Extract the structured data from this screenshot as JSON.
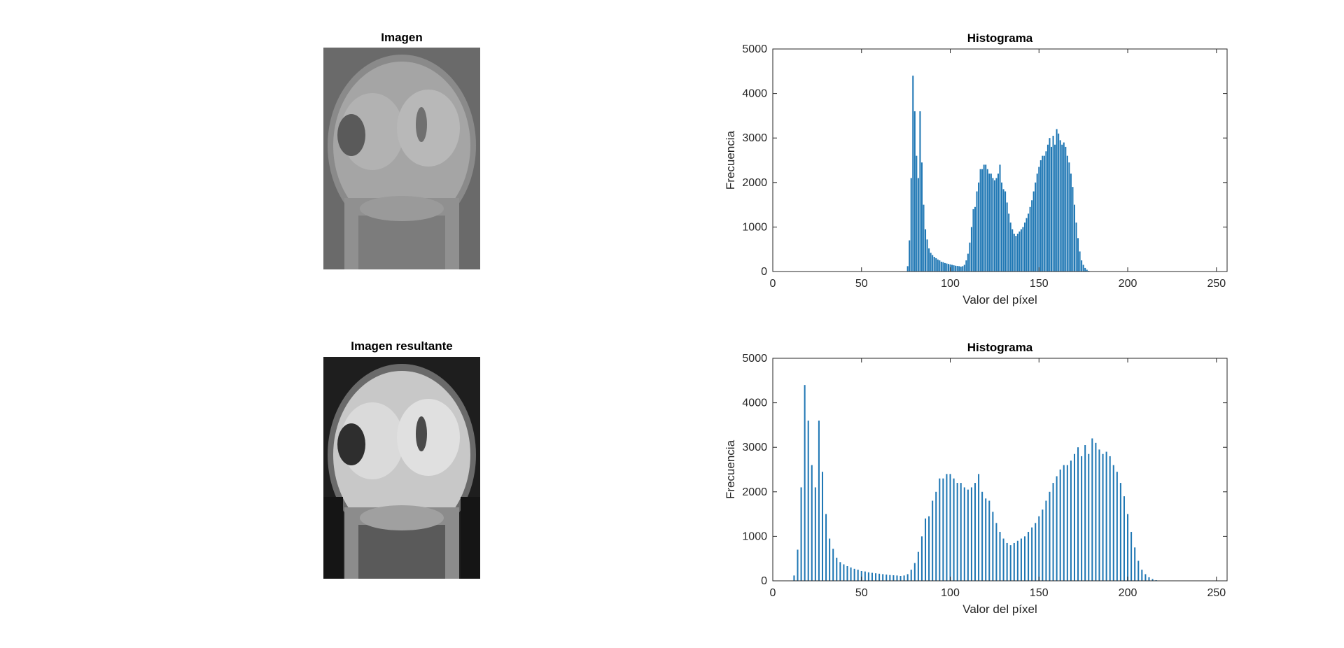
{
  "figure": {
    "panels": [
      {
        "title": "Imagen",
        "type": "image",
        "tone": "original-grayscale"
      },
      {
        "title": "Imagen resultante",
        "type": "image",
        "tone": "contrast-stretched"
      }
    ]
  },
  "chart_data": [
    {
      "type": "bar",
      "title": "Histograma",
      "xlabel": "Valor del píxel",
      "ylabel": "Frecuencia",
      "xlim": [
        0,
        256
      ],
      "ylim": [
        0,
        5000
      ],
      "xticks": [
        "0",
        "50",
        "100",
        "150",
        "200",
        "250"
      ],
      "yticks": [
        "0",
        "1000",
        "2000",
        "3000",
        "4000",
        "5000"
      ],
      "bar_color": "#1f77b4",
      "x": [
        76,
        77,
        78,
        79,
        80,
        81,
        82,
        83,
        84,
        85,
        86,
        87,
        88,
        89,
        90,
        91,
        92,
        93,
        94,
        95,
        96,
        97,
        98,
        99,
        100,
        101,
        102,
        103,
        104,
        105,
        106,
        107,
        108,
        109,
        110,
        111,
        112,
        113,
        114,
        115,
        116,
        117,
        118,
        119,
        120,
        121,
        122,
        123,
        124,
        125,
        126,
        127,
        128,
        129,
        130,
        131,
        132,
        133,
        134,
        135,
        136,
        137,
        138,
        139,
        140,
        141,
        142,
        143,
        144,
        145,
        146,
        147,
        148,
        149,
        150,
        151,
        152,
        153,
        154,
        155,
        156,
        157,
        158,
        159,
        160,
        161,
        162,
        163,
        164,
        165,
        166,
        167,
        168,
        169,
        170,
        171,
        172,
        173,
        174,
        175,
        176,
        177,
        178,
        179,
        180,
        181,
        182,
        183,
        184
      ],
      "values": [
        120,
        700,
        2100,
        4400,
        3600,
        2600,
        2100,
        3600,
        2450,
        1500,
        950,
        720,
        520,
        420,
        370,
        330,
        300,
        270,
        250,
        220,
        210,
        190,
        180,
        170,
        160,
        150,
        140,
        130,
        125,
        120,
        110,
        120,
        150,
        250,
        400,
        650,
        1000,
        1400,
        1450,
        1800,
        2000,
        2300,
        2300,
        2400,
        2400,
        2300,
        2200,
        2200,
        2100,
        2050,
        2100,
        2200,
        2400,
        2000,
        1850,
        1800,
        1550,
        1300,
        1100,
        950,
        850,
        800,
        850,
        900,
        950,
        1000,
        1100,
        1200,
        1300,
        1450,
        1600,
        1800,
        2000,
        2200,
        2350,
        2500,
        2600,
        2600,
        2700,
        2850,
        3000,
        2800,
        3050,
        2850,
        3200,
        3100,
        2950,
        2850,
        2900,
        2800,
        2600,
        2450,
        2200,
        1900,
        1500,
        1100,
        750,
        450,
        250,
        150,
        80,
        40,
        15,
        5,
        2,
        0,
        0,
        0,
        0
      ]
    },
    {
      "type": "bar",
      "title": "Histograma",
      "xlabel": "Valor del píxel",
      "ylabel": "Frecuencia",
      "xlim": [
        0,
        256
      ],
      "ylim": [
        0,
        5000
      ],
      "xticks": [
        "0",
        "50",
        "100",
        "150",
        "200",
        "250"
      ],
      "yticks": [
        "0",
        "1000",
        "2000",
        "3000",
        "4000",
        "5000"
      ],
      "bar_color": "#1f77b4",
      "x": [
        12,
        14,
        16,
        18,
        20,
        22,
        24,
        26,
        28,
        30,
        32,
        34,
        36,
        38,
        40,
        42,
        44,
        46,
        48,
        50,
        52,
        54,
        56,
        58,
        60,
        62,
        64,
        66,
        68,
        70,
        72,
        74,
        76,
        78,
        80,
        82,
        84,
        86,
        88,
        90,
        92,
        94,
        96,
        98,
        100,
        102,
        104,
        106,
        108,
        110,
        112,
        114,
        116,
        118,
        120,
        122,
        124,
        126,
        128,
        130,
        132,
        134,
        136,
        138,
        140,
        142,
        144,
        146,
        148,
        150,
        152,
        154,
        156,
        158,
        160,
        162,
        164,
        166,
        168,
        170,
        172,
        174,
        176,
        178,
        180,
        182,
        184,
        186,
        188,
        190,
        192,
        194,
        196,
        198,
        200,
        202,
        204,
        206,
        208,
        210,
        212,
        214,
        216,
        218,
        220,
        222,
        224,
        226,
        228,
        230,
        232,
        234,
        236,
        238,
        240,
        242,
        244,
        246,
        248
      ],
      "values": [
        120,
        700,
        2100,
        4400,
        3600,
        2600,
        2100,
        3600,
        2450,
        1500,
        950,
        720,
        520,
        420,
        370,
        330,
        300,
        270,
        250,
        220,
        210,
        190,
        180,
        170,
        160,
        150,
        140,
        130,
        125,
        120,
        110,
        120,
        150,
        250,
        400,
        650,
        1000,
        1400,
        1450,
        1800,
        2000,
        2300,
        2300,
        2400,
        2400,
        2300,
        2200,
        2200,
        2100,
        2050,
        2100,
        2200,
        2400,
        2000,
        1850,
        1800,
        1550,
        1300,
        1100,
        950,
        850,
        800,
        850,
        900,
        950,
        1000,
        1100,
        1200,
        1300,
        1450,
        1600,
        1800,
        2000,
        2200,
        2350,
        2500,
        2600,
        2600,
        2700,
        2850,
        3000,
        2800,
        3050,
        2850,
        3200,
        3100,
        2950,
        2850,
        2900,
        2800,
        2600,
        2450,
        2200,
        1900,
        1500,
        1100,
        750,
        450,
        250,
        150,
        80,
        40,
        15,
        5,
        2,
        0,
        0,
        0,
        0,
        0,
        0,
        0,
        0,
        0,
        0,
        0,
        0,
        0,
        0
      ]
    }
  ]
}
